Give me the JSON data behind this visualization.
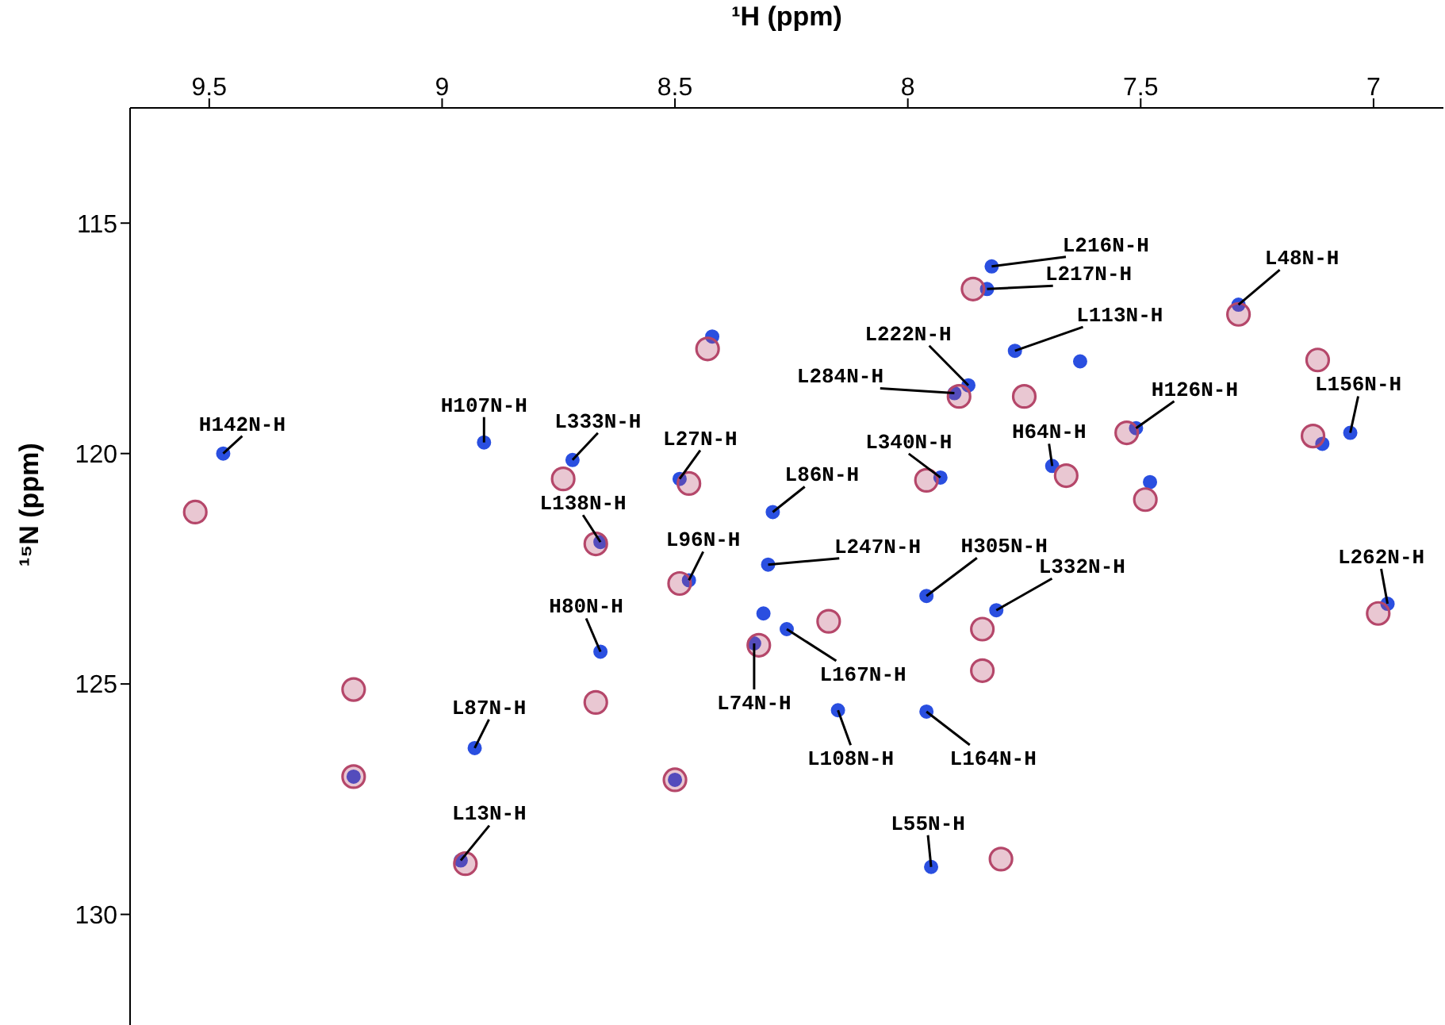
{
  "chart_data": {
    "type": "scatter",
    "xlabel": "¹H (ppm)",
    "ylabel": "¹⁵N (ppm)",
    "xlim": [
      9.67,
      6.85
    ],
    "ylim": [
      132.4,
      112.5
    ],
    "xticks": [
      9.5,
      9,
      8.5,
      8,
      7.5,
      7
    ],
    "yticks": [
      115,
      120,
      125,
      130
    ],
    "marker": "circle",
    "series": [
      {
        "color": "#2a4fe0",
        "x": [
          9.47,
          8.91,
          8.72,
          8.49,
          8.29,
          8.66,
          8.47,
          8.3,
          8.66,
          8.33,
          8.93,
          8.96,
          7.82,
          7.83,
          7.77,
          7.87,
          7.9,
          7.51,
          7.05,
          7.29,
          7.69,
          7.93,
          7.96,
          7.81,
          6.97,
          8.26,
          8.15,
          7.96,
          7.95,
          8.42,
          7.63,
          7.48,
          8.5,
          9.19,
          7.11,
          8.31
        ],
        "values": [
          120.0,
          119.76,
          120.14,
          120.55,
          121.27,
          121.92,
          122.75,
          122.41,
          124.3,
          124.12,
          126.39,
          128.83,
          115.94,
          116.43,
          117.77,
          118.52,
          118.69,
          119.45,
          119.55,
          116.77,
          120.27,
          120.52,
          123.09,
          123.4,
          123.26,
          123.81,
          125.57,
          125.6,
          128.97,
          117.46,
          118.0,
          120.62,
          127.08,
          127.01,
          119.79,
          123.47
        ]
      },
      {
        "color": "#b5476a",
        "x": [
          9.53,
          8.67,
          9.19,
          7.84,
          7.8,
          8.43,
          8.74,
          8.47,
          8.67,
          8.49,
          8.32,
          8.17,
          8.5,
          9.19,
          8.95,
          7.86,
          7.29,
          7.75,
          7.89,
          7.96,
          7.53,
          7.49,
          7.13,
          7.12,
          7.84,
          6.99,
          7.66
        ],
        "values": [
          121.27,
          125.4,
          125.12,
          124.71,
          128.8,
          117.73,
          120.55,
          120.65,
          121.96,
          122.82,
          124.16,
          123.64,
          127.08,
          127.01,
          128.9,
          116.43,
          116.98,
          118.76,
          118.76,
          120.58,
          119.55,
          121.0,
          119.62,
          117.97,
          123.81,
          123.47,
          120.48
        ]
      }
    ],
    "annotations": [
      {
        "text": "H142N-H",
        "x": 9.47,
        "y": 120.0
      },
      {
        "text": "H107N-H",
        "x": 8.91,
        "y": 119.76
      },
      {
        "text": "L333N-H",
        "x": 8.72,
        "y": 120.14
      },
      {
        "text": "L27N-H",
        "x": 8.49,
        "y": 120.55
      },
      {
        "text": "L86N-H",
        "x": 8.29,
        "y": 121.27
      },
      {
        "text": "L138N-H",
        "x": 8.66,
        "y": 121.92
      },
      {
        "text": "L96N-H",
        "x": 8.47,
        "y": 122.75
      },
      {
        "text": "L247N-H",
        "x": 8.3,
        "y": 122.41
      },
      {
        "text": "H80N-H",
        "x": 8.66,
        "y": 124.3
      },
      {
        "text": "L74N-H",
        "x": 8.33,
        "y": 124.12
      },
      {
        "text": "L87N-H",
        "x": 8.93,
        "y": 126.39
      },
      {
        "text": "L13N-H",
        "x": 8.96,
        "y": 128.83
      },
      {
        "text": "L216N-H",
        "x": 7.82,
        "y": 115.94
      },
      {
        "text": "L217N-H",
        "x": 7.83,
        "y": 116.43
      },
      {
        "text": "L113N-H",
        "x": 7.77,
        "y": 117.77
      },
      {
        "text": "L222N-H",
        "x": 7.87,
        "y": 118.52
      },
      {
        "text": "L284N-H",
        "x": 7.9,
        "y": 118.69
      },
      {
        "text": "H126N-H",
        "x": 7.51,
        "y": 119.45
      },
      {
        "text": "L156N-H",
        "x": 7.05,
        "y": 119.55
      },
      {
        "text": "L48N-H",
        "x": 7.29,
        "y": 116.77
      },
      {
        "text": "H64N-H",
        "x": 7.69,
        "y": 120.27
      },
      {
        "text": "L340N-H",
        "x": 7.93,
        "y": 120.52
      },
      {
        "text": "H305N-H",
        "x": 7.96,
        "y": 123.09
      },
      {
        "text": "L332N-H",
        "x": 7.81,
        "y": 123.4
      },
      {
        "text": "L262N-H",
        "x": 6.97,
        "y": 123.26
      },
      {
        "text": "L167N-H",
        "x": 8.26,
        "y": 123.81
      },
      {
        "text": "L108N-H",
        "x": 8.15,
        "y": 125.57
      },
      {
        "text": "L164N-H",
        "x": 7.96,
        "y": 125.6
      },
      {
        "text": "L55N-H",
        "x": 7.95,
        "y": 128.97
      }
    ]
  }
}
